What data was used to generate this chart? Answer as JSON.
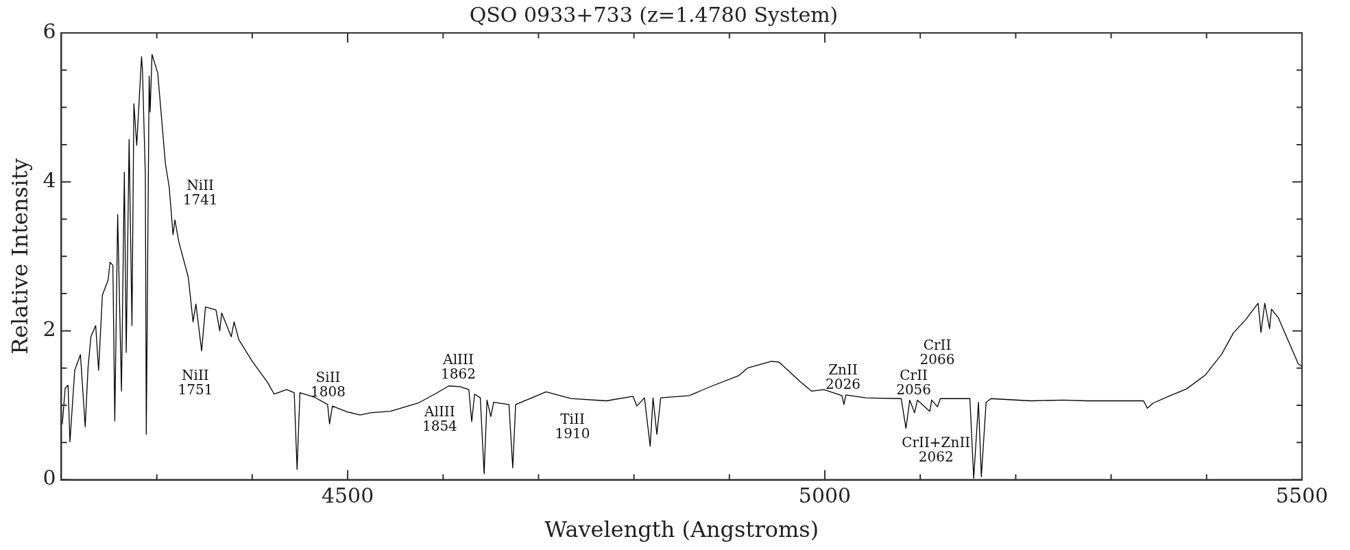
{
  "chart_data": {
    "type": "line",
    "title": "QSO 0933+733 (z=1.4780 System)",
    "xlabel": "Wavelength (Angstroms)",
    "ylabel": "Relative Intensity",
    "xlim": [
      4200,
      5500
    ],
    "ylim": [
      0,
      6
    ],
    "xticks": [
      {
        "value": 4300,
        "label": null
      },
      {
        "value": 4400,
        "label": null
      },
      4500,
      {
        "value": 4600,
        "label": null
      },
      {
        "value": 4700,
        "label": null
      },
      {
        "value": 4800,
        "label": null
      },
      {
        "value": 4900,
        "label": null
      },
      5000,
      {
        "value": 5100,
        "label": null
      },
      {
        "value": 5200,
        "label": null
      },
      {
        "value": 5300,
        "label": null
      },
      {
        "value": 5400,
        "label": null
      },
      5500
    ],
    "yticks": [
      0,
      {
        "value": 0.5,
        "label": null
      },
      {
        "value": 1,
        "label": null
      },
      {
        "value": 1.5,
        "label": null
      },
      2,
      {
        "value": 2.5,
        "label": null
      },
      {
        "value": 3,
        "label": null
      },
      {
        "value": 3.5,
        "label": null
      },
      4,
      {
        "value": 4.5,
        "label": null
      },
      {
        "value": 5,
        "label": null
      },
      {
        "value": 5.5,
        "label": null
      },
      6
    ],
    "marker": "none",
    "line_style": "solid",
    "series": [
      {
        "color": "#000000",
        "x": [
          4201,
          4204,
          4207,
          4209,
          4214,
          4220,
          4225,
          4228,
          4231,
          4236,
          4239,
          4243,
          4249,
          4251,
          4254,
          4256,
          4259,
          4263,
          4266,
          4268,
          4271,
          4274,
          4276,
          4279,
          4284,
          4285,
          4288,
          4289,
          4292,
          4293,
          4295,
          4301,
          4309,
          4313,
          4317,
          4319,
          4323,
          4333,
          4338,
          4341,
          4347,
          4351,
          4362,
          4366,
          4368,
          4378,
          4381,
          4386,
          4400,
          4416,
          4423,
          4436,
          4444,
          4447,
          4450,
          4465,
          4479,
          4481,
          4484,
          4500,
          4513,
          4524,
          4545,
          4574,
          4594,
          4606,
          4618,
          4627,
          4630,
          4633,
          4639,
          4643,
          4646,
          4650,
          4653,
          4669,
          4673,
          4676,
          4708,
          4734,
          4771,
          4799,
          4803,
          4811,
          4817,
          4820,
          4824,
          4828,
          4858,
          4882,
          4910,
          4919,
          4944,
          4952,
          4974,
          4986,
          4999,
          5018,
          5020,
          5022,
          5043,
          5080,
          5085,
          5089,
          5094,
          5097,
          5110,
          5112,
          5118,
          5121,
          5152,
          5156,
          5161,
          5164,
          5169,
          5174,
          5216,
          5250,
          5275,
          5334,
          5338,
          5344,
          5362,
          5379,
          5399,
          5416,
          5428,
          5441,
          5454,
          5457,
          5461,
          5466,
          5468,
          5475,
          5496,
          5500
        ],
        "values": [
          0.75,
          1.23,
          1.27,
          0.51,
          1.47,
          1.68,
          0.71,
          1.51,
          1.92,
          2.07,
          1.47,
          2.48,
          2.68,
          2.92,
          2.88,
          0.79,
          3.56,
          1.19,
          4.13,
          1.71,
          4.57,
          2.07,
          5.05,
          4.49,
          5.68,
          5.5,
          4.09,
          0.61,
          5.42,
          4.94,
          5.71,
          5.46,
          4.25,
          3.93,
          3.29,
          3.49,
          3.2,
          2.72,
          2.12,
          2.36,
          1.73,
          2.32,
          2.28,
          2.0,
          2.24,
          1.92,
          2.12,
          1.88,
          1.59,
          1.31,
          1.15,
          1.21,
          1.17,
          0.14,
          1.17,
          1.11,
          1.01,
          0.75,
          0.99,
          0.91,
          0.87,
          0.9,
          0.92,
          1.03,
          1.17,
          1.26,
          1.25,
          1.21,
          0.78,
          1.15,
          1.1,
          0.08,
          1.07,
          0.85,
          1.04,
          1.01,
          0.16,
          1.01,
          1.18,
          1.09,
          1.06,
          1.12,
          0.99,
          1.1,
          0.45,
          1.1,
          0.61,
          1.1,
          1.13,
          1.26,
          1.4,
          1.5,
          1.59,
          1.58,
          1.32,
          1.19,
          1.21,
          1.13,
          1.01,
          1.14,
          1.1,
          1.09,
          0.69,
          1.07,
          0.9,
          1.07,
          0.92,
          1.07,
          0.98,
          1.09,
          1.09,
          0.02,
          1.04,
          0.04,
          1.04,
          1.09,
          1.06,
          1.07,
          1.06,
          1.06,
          0.96,
          1.03,
          1.13,
          1.22,
          1.41,
          1.69,
          1.97,
          2.15,
          2.37,
          1.98,
          2.37,
          2.03,
          2.29,
          2.18,
          1.56,
          1.52
        ]
      }
    ],
    "annotations": [
      "NiII\n1741",
      "NiII\n1751",
      "SiII\n1808",
      "AlIII\n1862",
      "AlIII\n1854",
      "TiII\n1910",
      "ZnII\n2026",
      "CrII\n2056",
      "CrII\n2066",
      "CrII+ZnII\n2062"
    ]
  }
}
